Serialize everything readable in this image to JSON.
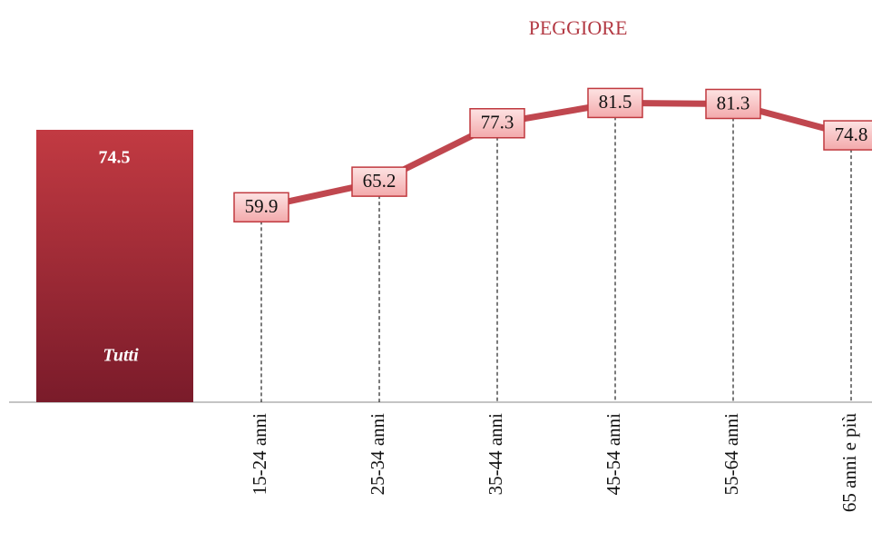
{
  "chart_data": [
    {
      "type": "bar",
      "categories": [
        "Tutti"
      ],
      "values": [
        74.5
      ],
      "color": "#a82a35"
    },
    {
      "type": "line",
      "title": "PEGGIORE",
      "categories": [
        "15-24 anni",
        "25-34 anni",
        "35-44 anni",
        "45-54 anni",
        "55-64 anni",
        "65 anni e più"
      ],
      "values": [
        59.9,
        65.2,
        77.3,
        81.5,
        81.3,
        74.8
      ],
      "color": "#c0474f"
    }
  ]
}
